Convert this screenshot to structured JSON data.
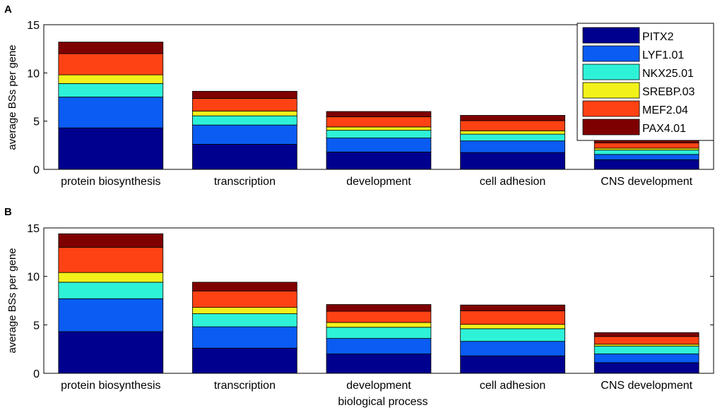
{
  "chart_data": [
    {
      "type": "bar",
      "stacked": true,
      "panel_label": "A",
      "ylabel": "average BSs per gene",
      "xlabel": "",
      "ylim": [
        0,
        15
      ],
      "yticks": [
        0,
        5,
        10,
        15
      ],
      "categories": [
        "protein biosynthesis",
        "transcription",
        "development",
        "cell adhesion",
        "CNS development"
      ],
      "legend_position": "top-right",
      "series": [
        {
          "name": "PITX2",
          "color": "#00008f",
          "values": [
            4.3,
            2.6,
            1.8,
            1.75,
            1.0
          ]
        },
        {
          "name": "LYF1.01",
          "color": "#0a5cf2",
          "values": [
            3.2,
            2.0,
            1.45,
            1.2,
            0.55
          ]
        },
        {
          "name": "NKX25.01",
          "color": "#2ef2d8",
          "values": [
            1.4,
            0.95,
            0.8,
            0.7,
            0.45
          ]
        },
        {
          "name": "SREBP.03",
          "color": "#f2f21a",
          "values": [
            0.9,
            0.5,
            0.35,
            0.35,
            0.2
          ]
        },
        {
          "name": "MEF2.04",
          "color": "#ff4214",
          "values": [
            2.2,
            1.3,
            1.05,
            1.05,
            0.55
          ]
        },
        {
          "name": "PAX4.01",
          "color": "#7f0000",
          "values": [
            1.2,
            0.75,
            0.55,
            0.55,
            0.25
          ]
        }
      ]
    },
    {
      "type": "bar",
      "stacked": true,
      "panel_label": "B",
      "ylabel": "average BSs per gene",
      "xlabel": "biological process",
      "ylim": [
        0,
        15
      ],
      "yticks": [
        0,
        5,
        10,
        15
      ],
      "categories": [
        "protein biosynthesis",
        "transcription",
        "development",
        "cell adhesion",
        "CNS development"
      ],
      "series": [
        {
          "name": "PITX2",
          "color": "#00008f",
          "values": [
            4.3,
            2.6,
            2.0,
            1.8,
            1.1
          ]
        },
        {
          "name": "LYF1.01",
          "color": "#0a5cf2",
          "values": [
            3.4,
            2.2,
            1.6,
            1.5,
            0.9
          ]
        },
        {
          "name": "NKX25.01",
          "color": "#2ef2d8",
          "values": [
            1.7,
            1.35,
            1.15,
            1.3,
            0.8
          ]
        },
        {
          "name": "SREBP.03",
          "color": "#f2f21a",
          "values": [
            1.0,
            0.65,
            0.5,
            0.45,
            0.2
          ]
        },
        {
          "name": "MEF2.04",
          "color": "#ff4214",
          "values": [
            2.6,
            1.7,
            1.15,
            1.4,
            0.8
          ]
        },
        {
          "name": "PAX4.01",
          "color": "#7f0000",
          "values": [
            1.4,
            0.9,
            0.7,
            0.6,
            0.4
          ]
        }
      ]
    }
  ]
}
